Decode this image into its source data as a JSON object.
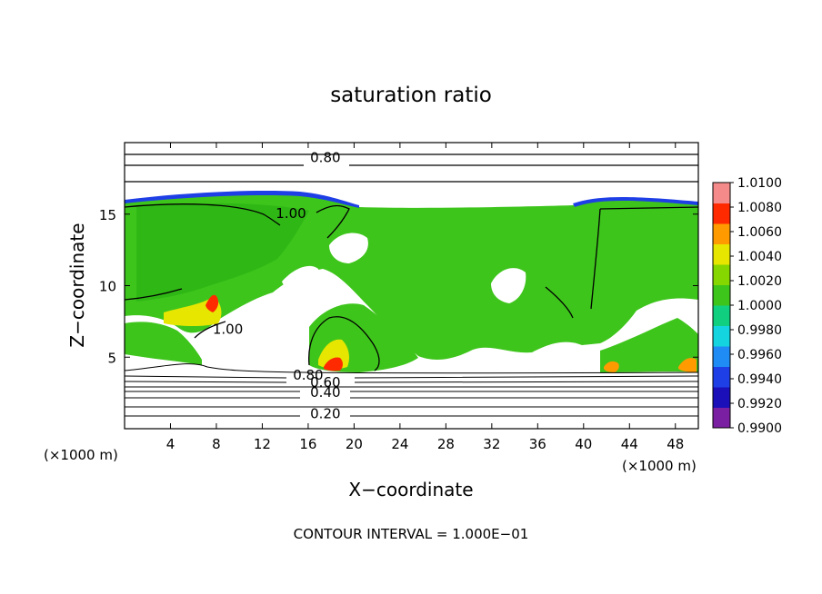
{
  "chart_data": {
    "type": "heatmap",
    "title": "saturation ratio",
    "xlabel": "X−coordinate",
    "ylabel": "Z−coordinate",
    "x_unit": "(×1000 m)",
    "z_unit": "(×1000 m)",
    "xlim": [
      0,
      50
    ],
    "ylim": [
      0,
      20
    ],
    "x_ticks": [
      "4",
      "8",
      "12",
      "16",
      "20",
      "24",
      "28",
      "32",
      "36",
      "40",
      "44",
      "48"
    ],
    "y_ticks": [
      "5",
      "10",
      "15"
    ],
    "footer": "CONTOUR INTERVAL = 1.000E−01",
    "contour_interval": 0.1,
    "contour_labels": [
      {
        "text": "0.80",
        "x": 17.5,
        "z": 18.7
      },
      {
        "text": "1.00",
        "x": 14.5,
        "z": 14.8
      },
      {
        "text": "1.00",
        "x": 9.0,
        "z": 6.7
      },
      {
        "text": "0.80",
        "x": 16.0,
        "z": 3.5
      },
      {
        "text": "0.60",
        "x": 17.5,
        "z": 3.0
      },
      {
        "text": "0.40",
        "x": 17.5,
        "z": 2.3
      },
      {
        "text": "0.20",
        "x": 17.5,
        "z": 0.8
      }
    ],
    "colorbar": {
      "min": 0.99,
      "max": 1.01,
      "labels": [
        "1.0100",
        "1.0080",
        "1.0060",
        "1.0040",
        "1.0020",
        "1.0000",
        "0.9980",
        "0.9960",
        "0.9940",
        "0.9920",
        "0.9900"
      ],
      "colors": [
        "#7b1fa2",
        "#1a0fb8",
        "#1f3fe6",
        "#1f8bf5",
        "#14d4e0",
        "#10d080",
        "#3ec51c",
        "#86d600",
        "#e6e600",
        "#ff9a00",
        "#ff2a00",
        "#f58a8a"
      ]
    }
  }
}
